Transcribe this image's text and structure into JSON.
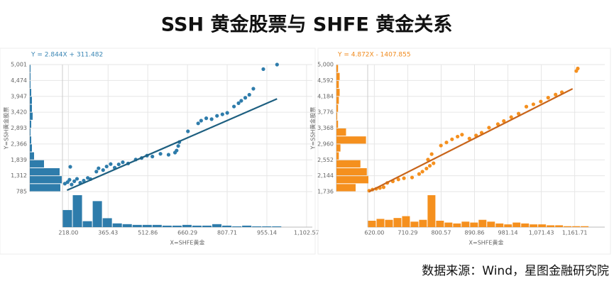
{
  "title": "SSH 黄金股票与 SHFE 黄金关系",
  "source": "数据来源：Wind，星图金融研究院",
  "chart_data": [
    {
      "type": "scatter",
      "annotation": "Y = 2.844X + 311.482",
      "color": "#2e7cab",
      "annotation_color": "#3a86b4",
      "x_label": "X=SHFE黄金",
      "y_label": "Y=SSH黄金股票",
      "xlim": [
        196,
        1124
      ],
      "ylim": [
        785,
        5001
      ],
      "xticks": [
        {
          "value": 218,
          "label": "218.00"
        },
        {
          "value": 365.43,
          "label": "365.43"
        },
        {
          "value": 512.86,
          "label": "512.86"
        },
        {
          "value": 660.29,
          "label": "660.29"
        },
        {
          "value": 807.71,
          "label": "807.71"
        },
        {
          "value": 955.14,
          "label": "955.14"
        },
        {
          "value": 1102.57,
          "label": "1,102.57"
        }
      ],
      "yticks": [
        785,
        {
          "value": 1312,
          "label": "1,312"
        },
        {
          "value": 1839,
          "label": "1,839"
        },
        {
          "value": 2366,
          "label": "2,366"
        },
        {
          "value": 2893,
          "label": "2,893"
        },
        {
          "value": 3420,
          "label": "3,420"
        },
        {
          "value": 3947,
          "label": "3,947"
        },
        {
          "value": 4474,
          "label": "4,474"
        },
        {
          "value": 5001,
          "label": "5,001"
        }
      ],
      "grid": true,
      "x": [
        205,
        215,
        222,
        230,
        240,
        250,
        262,
        275,
        290,
        300,
        225,
        322,
        330,
        347,
        360,
        375,
        390,
        405,
        420,
        440,
        468,
        490,
        510,
        530,
        560,
        590,
        614,
        620,
        626,
        630,
        662,
        700,
        711,
        730,
        750,
        770,
        790,
        808,
        833,
        850,
        860,
        875,
        890,
        905,
        942,
        993
      ],
      "values": [
        1050,
        1100,
        1180,
        1020,
        1130,
        1210,
        1080,
        1150,
        1240,
        1200,
        1609,
        1450,
        1560,
        1500,
        1620,
        1700,
        1580,
        1690,
        1760,
        1720,
        1850,
        1900,
        1980,
        1950,
        2040,
        2010,
        2080,
        2150,
        2300,
        2430,
        2787,
        3050,
        3140,
        3220,
        3190,
        3300,
        3350,
        3400,
        3610,
        3720,
        3800,
        3900,
        4000,
        4200,
        4850,
        5001
      ],
      "trend": {
        "x": [
          213,
          993
        ],
        "values": [
          832,
          3865
        ],
        "color": "#1d5f80"
      },
      "y_hist": {
        "bins": [
          785,
          1048.5,
          1312,
          1575.5,
          1839,
          2102.5,
          2366,
          2629.5,
          2893,
          3156.5,
          3420,
          3683.5,
          3947,
          4210.5,
          4474,
          4737.5,
          5001
        ],
        "counts": [
          43,
          45,
          42,
          20,
          6,
          3,
          2,
          1,
          2,
          4,
          3,
          3,
          2,
          1,
          1,
          1
        ]
      },
      "x_hist": {
        "bins": [
          196,
          233,
          270,
          307,
          344,
          381,
          418,
          455,
          492,
          529,
          566,
          603,
          640,
          677,
          714,
          751,
          788,
          825,
          862,
          899,
          936,
          973,
          1010
        ],
        "counts": [
          23,
          43,
          8,
          35,
          12,
          5,
          4,
          3,
          3,
          3,
          2,
          2,
          3,
          2,
          2,
          4,
          2,
          1,
          2,
          1,
          1,
          1
        ]
      }
    },
    {
      "type": "scatter",
      "annotation": "Y = 4.872X - 1407.855",
      "color": "#f5901e",
      "annotation_color": "#f08a1c",
      "x_label": "X=SHFE黄金",
      "y_label": "Y=SSH黄金股票",
      "xlim": [
        602,
        1243
      ],
      "ylim": [
        1736,
        5000
      ],
      "xticks": [
        {
          "value": 620,
          "label": "620.00"
        },
        {
          "value": 710.29,
          "label": "710.29"
        },
        {
          "value": 800.57,
          "label": "800.57"
        },
        {
          "value": 890.86,
          "label": "890.86"
        },
        {
          "value": 981.14,
          "label": "981.14"
        },
        {
          "value": 1071.43,
          "label": "1,071.43"
        },
        {
          "value": 1161.71,
          "label": "1,161.71"
        }
      ],
      "yticks": [
        {
          "value": 1736,
          "label": "1,736"
        },
        {
          "value": 2144,
          "label": "2,144"
        },
        {
          "value": 2552,
          "label": "2,552"
        },
        {
          "value": 2960,
          "label": "2,960"
        },
        {
          "value": 3368,
          "label": "3,368"
        },
        {
          "value": 3776,
          "label": "3,776"
        },
        {
          "value": 4184,
          "label": "4,184"
        },
        {
          "value": 4592,
          "label": "4,592"
        },
        {
          "value": 5000,
          "label": "5,000"
        }
      ],
      "grid": true,
      "x": [
        606,
        615,
        625,
        635,
        645,
        655,
        670,
        685,
        700,
        722,
        741,
        750,
        761,
        770,
        780,
        765,
        775,
        800,
        815,
        830,
        845,
        857,
        877,
        895,
        910,
        930,
        954,
        970,
        990,
        1010,
        1031,
        1050,
        1070,
        1090,
        1110,
        1127,
        1166,
        1170
      ],
      "values": [
        1760,
        1790,
        1810,
        1830,
        1850,
        1960,
        2000,
        2050,
        2080,
        2100,
        2190,
        2250,
        2330,
        2400,
        2465,
        2560,
        2700,
        2920,
        3000,
        3080,
        3150,
        3200,
        3100,
        3180,
        3250,
        3380,
        3470,
        3550,
        3650,
        3740,
        3920,
        3980,
        4050,
        4150,
        4230,
        4290,
        4835,
        4900
      ],
      "trend": {
        "x": [
          606,
          1156
        ],
        "values": [
          1736,
          4379
        ],
        "color": "#c8651b"
      },
      "y_hist": {
        "bins": [
          1736,
          1940,
          2144,
          2348,
          2552,
          2756,
          2960,
          3164,
          3368,
          3572,
          3776,
          3980,
          4184,
          4388,
          4592,
          4796,
          5000
        ],
        "counts": [
          24,
          40,
          38,
          30,
          3,
          5,
          37,
          12,
          2,
          1,
          2,
          3,
          4,
          3,
          4,
          2
        ]
      },
      "x_hist": {
        "bins": [
          602,
          625,
          648,
          671,
          694,
          717,
          740,
          763,
          786,
          809,
          832,
          855,
          878,
          901,
          924,
          947,
          970,
          993,
          1016,
          1039,
          1062,
          1085,
          1108,
          1131,
          1154,
          1177,
          1200,
          1223,
          1246
        ],
        "counts": [
          7,
          9,
          8,
          10,
          12,
          6,
          8,
          35,
          7,
          5,
          4,
          6,
          5,
          8,
          6,
          4,
          3,
          5,
          4,
          3,
          3,
          2,
          2,
          1,
          1,
          1,
          0,
          0
        ]
      }
    }
  ]
}
